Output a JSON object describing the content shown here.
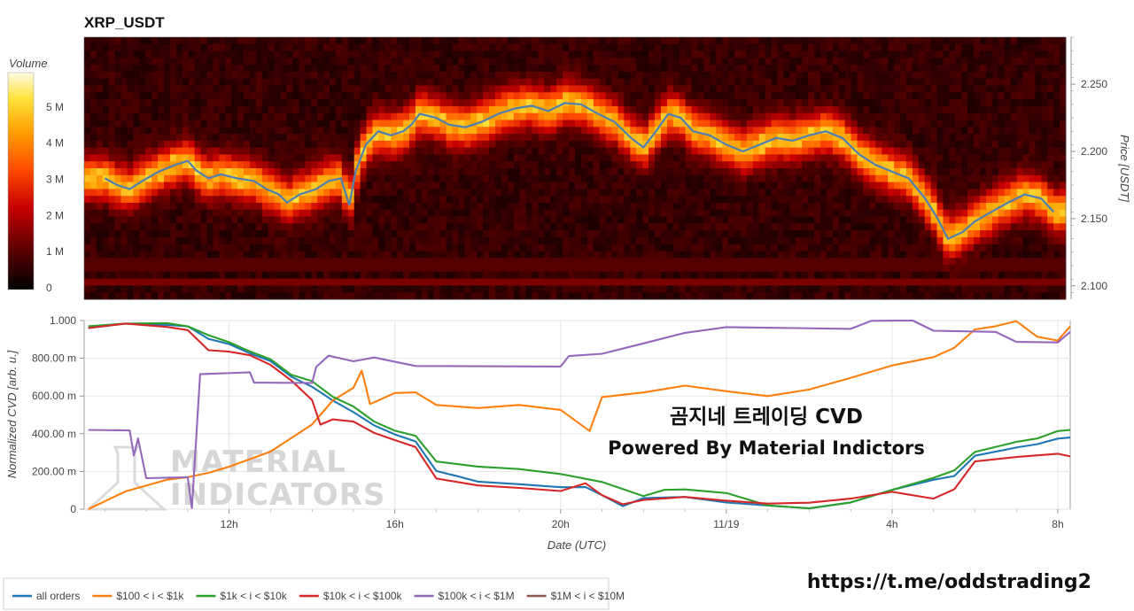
{
  "chart_data": [
    {
      "type": "heatmap",
      "title": "XRP_USDT",
      "colorbar": {
        "title": "Volume",
        "ticks": [
          "0",
          "1 M",
          "2 M",
          "3 M",
          "4 M",
          "5 M"
        ],
        "range": [
          0,
          6
        ]
      },
      "y_axis": {
        "title": "Price [USDT]",
        "ticks": [
          "2.100",
          "2.150",
          "2.200",
          "2.250"
        ],
        "range": [
          2.09,
          2.285
        ],
        "side": "right"
      },
      "price_line_color": "#4f7fb0",
      "price": [
        {
          "x": 9.0,
          "y": 2.18
        },
        {
          "x": 9.3,
          "y": 2.175
        },
        {
          "x": 9.6,
          "y": 2.172
        },
        {
          "x": 9.9,
          "y": 2.178
        },
        {
          "x": 10.3,
          "y": 2.185
        },
        {
          "x": 10.7,
          "y": 2.19
        },
        {
          "x": 11.0,
          "y": 2.193
        },
        {
          "x": 11.2,
          "y": 2.186
        },
        {
          "x": 11.5,
          "y": 2.18
        },
        {
          "x": 11.8,
          "y": 2.183
        },
        {
          "x": 12.2,
          "y": 2.18
        },
        {
          "x": 12.6,
          "y": 2.178
        },
        {
          "x": 12.9,
          "y": 2.172
        },
        {
          "x": 13.2,
          "y": 2.168
        },
        {
          "x": 13.4,
          "y": 2.162
        },
        {
          "x": 13.7,
          "y": 2.168
        },
        {
          "x": 14.1,
          "y": 2.172
        },
        {
          "x": 14.4,
          "y": 2.178
        },
        {
          "x": 14.7,
          "y": 2.18
        },
        {
          "x": 14.9,
          "y": 2.16
        },
        {
          "x": 15.05,
          "y": 2.185
        },
        {
          "x": 15.3,
          "y": 2.205
        },
        {
          "x": 15.6,
          "y": 2.215
        },
        {
          "x": 15.9,
          "y": 2.212
        },
        {
          "x": 16.2,
          "y": 2.215
        },
        {
          "x": 16.4,
          "y": 2.22
        },
        {
          "x": 16.6,
          "y": 2.228
        },
        {
          "x": 17.0,
          "y": 2.225
        },
        {
          "x": 17.3,
          "y": 2.22
        },
        {
          "x": 17.7,
          "y": 2.218
        },
        {
          "x": 18.1,
          "y": 2.222
        },
        {
          "x": 18.5,
          "y": 2.228
        },
        {
          "x": 18.9,
          "y": 2.232
        },
        {
          "x": 19.3,
          "y": 2.234
        },
        {
          "x": 19.7,
          "y": 2.23
        },
        {
          "x": 20.1,
          "y": 2.236
        },
        {
          "x": 20.5,
          "y": 2.235
        },
        {
          "x": 20.9,
          "y": 2.228
        },
        {
          "x": 21.3,
          "y": 2.222
        },
        {
          "x": 21.7,
          "y": 2.21
        },
        {
          "x": 22.0,
          "y": 2.203
        },
        {
          "x": 22.3,
          "y": 2.215
        },
        {
          "x": 22.6,
          "y": 2.228
        },
        {
          "x": 22.9,
          "y": 2.225
        },
        {
          "x": 23.2,
          "y": 2.215
        },
        {
          "x": 23.6,
          "y": 2.212
        },
        {
          "x": 24.0,
          "y": 2.205
        },
        {
          "x": 24.4,
          "y": 2.2
        },
        {
          "x": 24.8,
          "y": 2.205
        },
        {
          "x": 25.2,
          "y": 2.21
        },
        {
          "x": 25.6,
          "y": 2.208
        },
        {
          "x": 26.0,
          "y": 2.212
        },
        {
          "x": 26.4,
          "y": 2.215
        },
        {
          "x": 26.8,
          "y": 2.21
        },
        {
          "x": 27.2,
          "y": 2.198
        },
        {
          "x": 27.6,
          "y": 2.19
        },
        {
          "x": 28.0,
          "y": 2.185
        },
        {
          "x": 28.4,
          "y": 2.18
        },
        {
          "x": 28.8,
          "y": 2.165
        },
        {
          "x": 29.1,
          "y": 2.15
        },
        {
          "x": 29.35,
          "y": 2.135
        },
        {
          "x": 29.7,
          "y": 2.14
        },
        {
          "x": 30.0,
          "y": 2.148
        },
        {
          "x": 30.4,
          "y": 2.155
        },
        {
          "x": 30.8,
          "y": 2.162
        },
        {
          "x": 31.2,
          "y": 2.168
        },
        {
          "x": 31.6,
          "y": 2.165
        },
        {
          "x": 31.9,
          "y": 2.155
        }
      ]
    },
    {
      "type": "line",
      "x_axis": {
        "title": "Date (UTC)",
        "range": [
          8.5,
          32.3
        ],
        "ticks": [
          {
            "x": 12,
            "label": "12h"
          },
          {
            "x": 16,
            "label": "16h"
          },
          {
            "x": 20,
            "label": "20h"
          },
          {
            "x": 24,
            "label": "11/19"
          },
          {
            "x": 28,
            "label": "4h"
          },
          {
            "x": 32,
            "label": "8h"
          }
        ]
      },
      "y_axis": {
        "title": "Normalized CVD [arb. u.]",
        "range": [
          0,
          1
        ],
        "ticks": [
          {
            "v": 0,
            "label": "0"
          },
          {
            "v": 0.2,
            "label": "200.00 m"
          },
          {
            "v": 0.4,
            "label": "400.00 m"
          },
          {
            "v": 0.6,
            "label": "600.00 m"
          },
          {
            "v": 0.8,
            "label": "800.00 m"
          },
          {
            "v": 1.0,
            "label": "1.000"
          }
        ]
      },
      "series": [
        {
          "name": "all orders",
          "color": "#1f77b4",
          "points": [
            [
              8.6,
              0.96
            ],
            [
              9.5,
              0.99
            ],
            [
              10.5,
              0.98
            ],
            [
              11.0,
              0.97
            ],
            [
              11.5,
              0.9
            ],
            [
              12.0,
              0.87
            ],
            [
              12.5,
              0.82
            ],
            [
              13.0,
              0.78
            ],
            [
              13.5,
              0.7
            ],
            [
              14.0,
              0.65
            ],
            [
              14.5,
              0.58
            ],
            [
              15.0,
              0.52
            ],
            [
              15.5,
              0.45
            ],
            [
              16.0,
              0.4
            ],
            [
              16.5,
              0.36
            ],
            [
              17.0,
              0.2
            ],
            [
              17.5,
              0.17
            ],
            [
              18.0,
              0.14
            ],
            [
              19.0,
              0.13
            ],
            [
              20.0,
              0.12
            ],
            [
              20.6,
              0.12
            ],
            [
              21.0,
              0.08
            ],
            [
              21.5,
              0.02
            ],
            [
              22.0,
              0.06
            ],
            [
              23.0,
              0.06
            ],
            [
              24.0,
              0.03
            ],
            [
              25.0,
              0.02
            ],
            [
              26.0,
              0.01
            ],
            [
              27.0,
              0.04
            ],
            [
              28.0,
              0.1
            ],
            [
              29.0,
              0.15
            ],
            [
              29.5,
              0.17
            ],
            [
              30.0,
              0.28
            ],
            [
              31.0,
              0.33
            ],
            [
              31.5,
              0.35
            ],
            [
              32.0,
              0.38
            ],
            [
              32.3,
              0.38
            ]
          ]
        },
        {
          "name": "$100 < i < $1k",
          "color": "#ff7f0e",
          "points": [
            [
              8.6,
              0.0
            ],
            [
              9.5,
              0.1
            ],
            [
              10.5,
              0.16
            ],
            [
              11.0,
              0.17
            ],
            [
              11.5,
              0.19
            ],
            [
              12.0,
              0.22
            ],
            [
              13.0,
              0.3
            ],
            [
              14.0,
              0.45
            ],
            [
              14.5,
              0.58
            ],
            [
              15.0,
              0.65
            ],
            [
              15.2,
              0.73
            ],
            [
              15.4,
              0.56
            ],
            [
              16.0,
              0.62
            ],
            [
              16.5,
              0.62
            ],
            [
              17.0,
              0.55
            ],
            [
              18.0,
              0.53
            ],
            [
              19.0,
              0.55
            ],
            [
              20.0,
              0.53
            ],
            [
              20.7,
              0.41
            ],
            [
              21.0,
              0.6
            ],
            [
              22.0,
              0.62
            ],
            [
              23.0,
              0.65
            ],
            [
              24.0,
              0.62
            ],
            [
              25.0,
              0.6
            ],
            [
              26.0,
              0.64
            ],
            [
              27.0,
              0.7
            ],
            [
              28.0,
              0.76
            ],
            [
              29.0,
              0.8
            ],
            [
              29.5,
              0.85
            ],
            [
              30.0,
              0.95
            ],
            [
              30.5,
              0.97
            ],
            [
              31.0,
              1.0
            ],
            [
              31.5,
              0.92
            ],
            [
              32.0,
              0.9
            ],
            [
              32.3,
              0.97
            ]
          ]
        },
        {
          "name": "$1k < i < $10k",
          "color": "#2ca02c",
          "points": [
            [
              8.6,
              0.97
            ],
            [
              9.5,
              0.99
            ],
            [
              10.5,
              0.99
            ],
            [
              11.0,
              0.97
            ],
            [
              11.5,
              0.92
            ],
            [
              12.0,
              0.88
            ],
            [
              12.5,
              0.83
            ],
            [
              13.0,
              0.79
            ],
            [
              13.5,
              0.71
            ],
            [
              14.0,
              0.68
            ],
            [
              14.5,
              0.6
            ],
            [
              15.0,
              0.55
            ],
            [
              15.5,
              0.47
            ],
            [
              16.0,
              0.42
            ],
            [
              16.5,
              0.39
            ],
            [
              17.0,
              0.25
            ],
            [
              18.0,
              0.22
            ],
            [
              19.0,
              0.21
            ],
            [
              20.0,
              0.19
            ],
            [
              21.0,
              0.15
            ],
            [
              22.0,
              0.07
            ],
            [
              22.5,
              0.1
            ],
            [
              23.0,
              0.1
            ],
            [
              24.0,
              0.08
            ],
            [
              25.0,
              0.02
            ],
            [
              26.0,
              0.01
            ],
            [
              27.0,
              0.04
            ],
            [
              28.0,
              0.1
            ],
            [
              29.0,
              0.16
            ],
            [
              29.5,
              0.2
            ],
            [
              30.0,
              0.3
            ],
            [
              31.0,
              0.36
            ],
            [
              31.5,
              0.38
            ],
            [
              32.0,
              0.42
            ],
            [
              32.3,
              0.42
            ]
          ]
        },
        {
          "name": "$10k < i < $100k",
          "color": "#d62728",
          "points": [
            [
              8.6,
              0.96
            ],
            [
              9.5,
              0.99
            ],
            [
              10.5,
              0.97
            ],
            [
              11.0,
              0.95
            ],
            [
              11.5,
              0.84
            ],
            [
              12.0,
              0.83
            ],
            [
              12.5,
              0.81
            ],
            [
              13.0,
              0.76
            ],
            [
              13.5,
              0.68
            ],
            [
              14.0,
              0.58
            ],
            [
              14.2,
              0.45
            ],
            [
              14.5,
              0.48
            ],
            [
              15.0,
              0.47
            ],
            [
              15.5,
              0.41
            ],
            [
              16.0,
              0.37
            ],
            [
              16.5,
              0.33
            ],
            [
              17.0,
              0.16
            ],
            [
              18.0,
              0.12
            ],
            [
              19.0,
              0.11
            ],
            [
              20.0,
              0.1
            ],
            [
              20.6,
              0.14
            ],
            [
              21.0,
              0.08
            ],
            [
              21.5,
              0.03
            ],
            [
              22.0,
              0.05
            ],
            [
              23.0,
              0.06
            ],
            [
              24.0,
              0.04
            ],
            [
              25.0,
              0.03
            ],
            [
              26.0,
              0.04
            ],
            [
              27.0,
              0.06
            ],
            [
              28.0,
              0.09
            ],
            [
              29.0,
              0.05
            ],
            [
              29.5,
              0.1
            ],
            [
              30.0,
              0.25
            ],
            [
              31.0,
              0.28
            ],
            [
              32.0,
              0.3
            ],
            [
              32.3,
              0.28
            ]
          ]
        },
        {
          "name": "$100k < i < $1M",
          "color": "#9467bd",
          "points": [
            [
              8.6,
              0.42
            ],
            [
              9.6,
              0.42
            ],
            [
              9.7,
              0.28
            ],
            [
              9.8,
              0.37
            ],
            [
              10.0,
              0.17
            ],
            [
              11.0,
              0.17
            ],
            [
              11.1,
              0.0
            ],
            [
              11.3,
              0.72
            ],
            [
              12.5,
              0.72
            ],
            [
              12.6,
              0.67
            ],
            [
              14.0,
              0.67
            ],
            [
              14.1,
              0.76
            ],
            [
              14.4,
              0.81
            ],
            [
              15.0,
              0.79
            ],
            [
              15.5,
              0.81
            ],
            [
              16.5,
              0.76
            ],
            [
              20.0,
              0.76
            ],
            [
              20.2,
              0.81
            ],
            [
              21.0,
              0.83
            ],
            [
              22.0,
              0.88
            ],
            [
              23.0,
              0.93
            ],
            [
              24.0,
              0.96
            ],
            [
              27.0,
              0.96
            ],
            [
              27.5,
              1.0
            ],
            [
              28.5,
              1.0
            ],
            [
              29.0,
              0.94
            ],
            [
              30.5,
              0.94
            ],
            [
              31.0,
              0.89
            ],
            [
              32.0,
              0.89
            ],
            [
              32.3,
              0.94
            ]
          ]
        },
        {
          "name": "$1M < i < $10M",
          "color": "#8c564b",
          "points": []
        }
      ]
    }
  ],
  "overlay": {
    "line1": "곰지네 트레이딩 CVD",
    "line2": "Powered By Material Indictors"
  },
  "watermark": {
    "line1": "MATERIAL",
    "line2": "INDICATORS"
  },
  "link": "https://t.me/oddstrading2"
}
